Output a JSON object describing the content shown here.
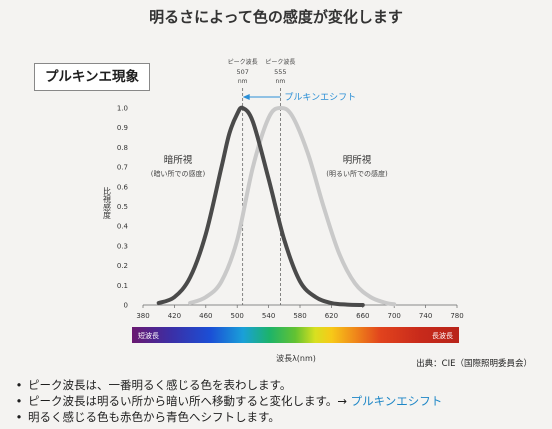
{
  "page_title": "明るさによって色の感度が変化します",
  "figure_title": "プルキンエ現象",
  "chart_data": {
    "type": "line",
    "x_axis": {
      "range": [
        380,
        780
      ],
      "ticks": [
        380,
        420,
        460,
        500,
        540,
        580,
        620,
        660,
        700,
        740,
        780
      ],
      "label": "波長λ(nm)"
    },
    "y_axis": {
      "range": [
        0,
        1.0
      ],
      "ticks": [
        "0",
        "0.1",
        "0.2",
        "0.3",
        "0.4",
        "0.5",
        "0.6",
        "0.7",
        "0.8",
        "0.9",
        "1.0"
      ],
      "label": "比視感度"
    },
    "grid": false,
    "series": [
      {
        "name": "暗所視",
        "sublabel": "(暗い所での感度)",
        "color": "#4a4a4a",
        "x": [
          400,
          420,
          440,
          460,
          480,
          490,
          500,
          507,
          520,
          540,
          560,
          580,
          600,
          620,
          640,
          660
        ],
        "y": [
          0.01,
          0.04,
          0.14,
          0.36,
          0.7,
          0.87,
          0.97,
          1.0,
          0.93,
          0.64,
          0.33,
          0.12,
          0.04,
          0.01,
          0.002,
          0.0
        ]
      },
      {
        "name": "明所視",
        "sublabel": "(明るい所での感度)",
        "color": "#c9c9c9",
        "x": [
          440,
          460,
          480,
          500,
          520,
          540,
          555,
          570,
          590,
          610,
          630,
          650,
          670,
          690,
          700
        ],
        "y": [
          0.01,
          0.04,
          0.12,
          0.33,
          0.7,
          0.95,
          1.0,
          0.96,
          0.77,
          0.5,
          0.26,
          0.11,
          0.04,
          0.01,
          0.004
        ]
      }
    ],
    "peaks": [
      {
        "caption": "ピーク波長",
        "value": "507",
        "unit": "nm",
        "x": 507
      },
      {
        "caption": "ピーク波長",
        "value": "555",
        "unit": "nm",
        "x": 555
      }
    ],
    "shift_annotation": "プルキンエシフト",
    "spectrum_bar": {
      "left_label": "短波長",
      "right_label": "長波長"
    }
  },
  "source": "出典：CIE（国際照明委員会）",
  "notes": [
    {
      "text": "ピーク波長は、一番明るく感じる色を表わします。",
      "extra": ""
    },
    {
      "text": "ピーク波長は明るい所から暗い所へ移動すると変化します。→ ",
      "extra": "プルキンエシフト"
    },
    {
      "text": "明るく感じる色も赤色から青色へシフトします。",
      "extra": ""
    }
  ],
  "colors": {
    "accent": "#2b8fd6",
    "dark_curve": "#4a4a4a",
    "light_curve": "#c9c9c9",
    "short_wave": "#7e1e7e",
    "long_wave": "#c0261c"
  }
}
